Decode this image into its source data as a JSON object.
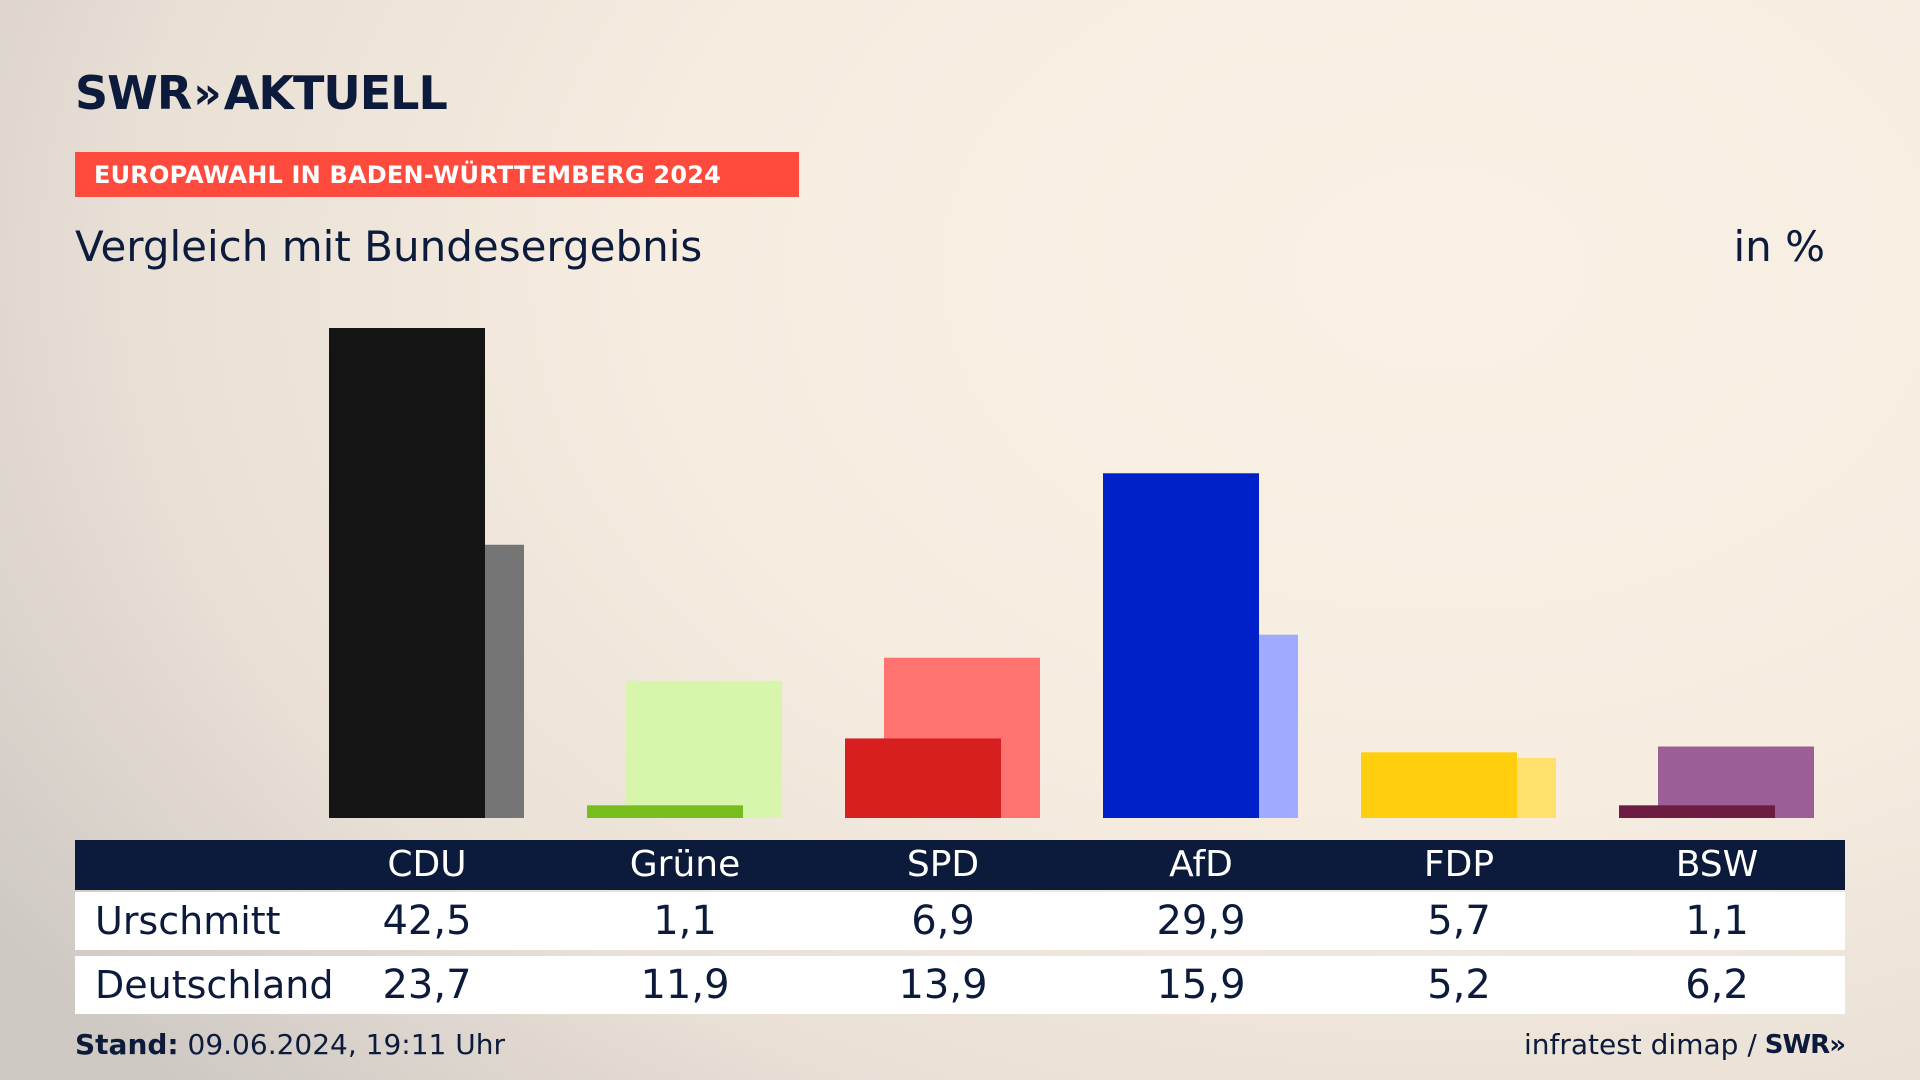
{
  "header": {
    "logo_text": "SWR",
    "logo_chevrons": "»",
    "logo_suffix": "AKTUELL",
    "banner": "EUROPAWAHL IN BADEN-WÜRTTEMBERG 2024",
    "subtitle": "Vergleich mit Bundesergebnis",
    "unit": "in %"
  },
  "table": {
    "rows": [
      {
        "label": "Urschmitt",
        "values": [
          "42,5",
          "1,1",
          "6,9",
          "29,9",
          "5,7",
          "1,1"
        ]
      },
      {
        "label": "Deutschland",
        "values": [
          "23,7",
          "11,9",
          "13,9",
          "15,9",
          "5,2",
          "6,2"
        ]
      }
    ]
  },
  "footer": {
    "stand_label": "Stand:",
    "stand_value": "09.06.2024, 19:11 Uhr",
    "source": "infratest dimap /",
    "source_logo": "SWR»"
  },
  "chart_data": {
    "type": "bar",
    "categories": [
      "CDU",
      "Grüne",
      "SPD",
      "AfD",
      "FDP",
      "BSW"
    ],
    "series": [
      {
        "name": "Urschmitt",
        "values": [
          42.5,
          1.1,
          6.9,
          29.9,
          5.7,
          1.1
        ]
      },
      {
        "name": "Deutschland",
        "values": [
          23.7,
          11.9,
          13.9,
          15.9,
          5.2,
          6.2
        ]
      }
    ],
    "colors": {
      "primary": [
        "#141414",
        "#78bd1e",
        "#d81f1f",
        "#0021c9",
        "#ffcf0e",
        "#6d1d42"
      ],
      "secondary": [
        "#757575",
        "#d7f5ab",
        "#ff7470",
        "#9eabff",
        "#ffe06c",
        "#9b5e97"
      ]
    },
    "ylim": [
      0,
      42.5
    ],
    "xlabel": "",
    "ylabel": ""
  }
}
